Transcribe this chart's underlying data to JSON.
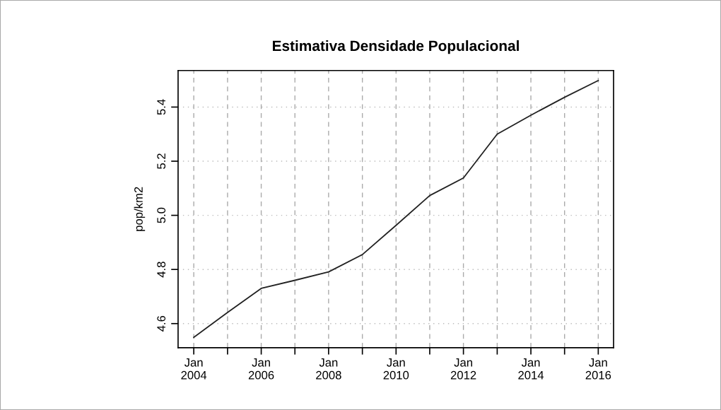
{
  "chart_data": {
    "type": "line",
    "title": "Estimativa Densidade Populacional",
    "ylabel": "pop/km2",
    "x": [
      "2004-01-01",
      "2005-01-01",
      "2006-01-01",
      "2007-01-01",
      "2008-01-01",
      "2009-01-01",
      "2010-01-01",
      "2011-01-01",
      "2012-01-01",
      "2013-01-01",
      "2014-01-01",
      "2015-01-01",
      "2016-01-01"
    ],
    "series": [
      {
        "color": "#222222",
        "values": [
          4.549,
          4.641,
          4.73,
          4.76,
          4.791,
          4.855,
          4.963,
          5.073,
          5.138,
          5.3,
          5.37,
          5.436,
          5.498
        ]
      }
    ],
    "xlim": [
      "2003-07-15",
      "2016-06-15"
    ],
    "xticks": [
      {
        "value": "2004-01-01",
        "label": "Jan\n2004"
      },
      {
        "value": "2005-01-01",
        "label": null
      },
      {
        "value": "2006-01-01",
        "label": "Jan\n2006"
      },
      {
        "value": "2007-01-01",
        "label": null
      },
      {
        "value": "2008-01-01",
        "label": "Jan\n2008"
      },
      {
        "value": "2009-01-01",
        "label": null
      },
      {
        "value": "2010-01-01",
        "label": "Jan\n2010"
      },
      {
        "value": "2011-01-01",
        "label": null
      },
      {
        "value": "2012-01-01",
        "label": "Jan\n2012"
      },
      {
        "value": "2013-01-01",
        "label": null
      },
      {
        "value": "2014-01-01",
        "label": "Jan\n2014"
      },
      {
        "value": "2015-01-01",
        "label": null
      },
      {
        "value": "2016-01-01",
        "label": "Jan\n2016"
      }
    ],
    "ylim": [
      4.511,
      5.535
    ],
    "yticks": [
      {
        "value": 4.6,
        "label": "4.6"
      },
      {
        "value": 4.8,
        "label": "4.8"
      },
      {
        "value": 5.0,
        "label": "5.0"
      },
      {
        "value": 5.2,
        "label": "5.2"
      },
      {
        "value": 5.4,
        "label": "5.4"
      }
    ],
    "grid": true,
    "marker": "none",
    "line_style": "solid"
  }
}
